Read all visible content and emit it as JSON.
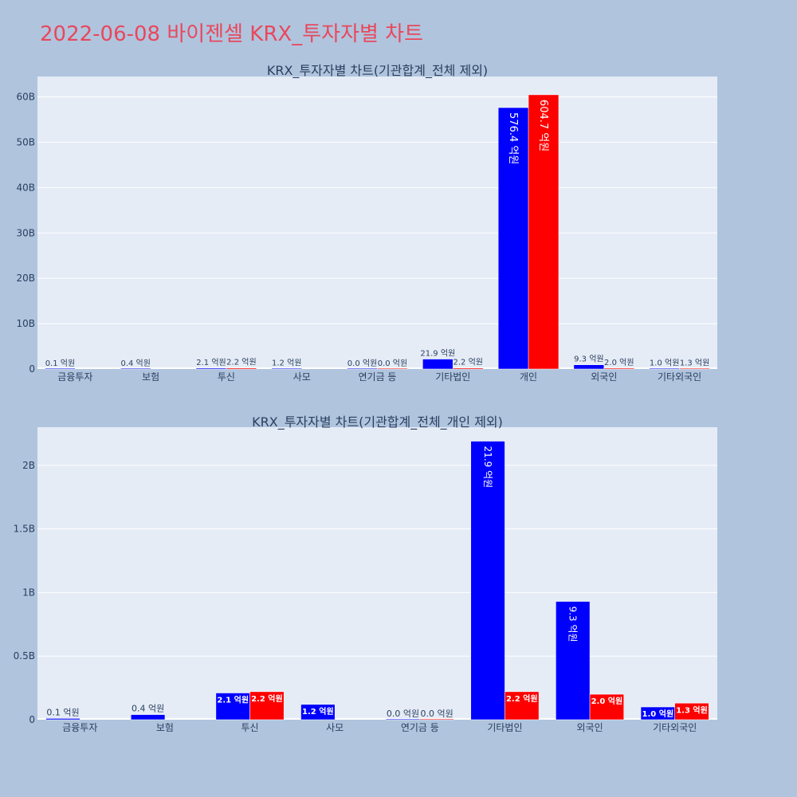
{
  "title": "2022-06-08 바이젠셀 KRX_투자자별 차트",
  "colors": {
    "background": "#b0c4de",
    "plot_bg": "#e5ecf6",
    "title": "#e8485c",
    "buy": "#0000ff",
    "sell": "#ff0000"
  },
  "chart_data": [
    {
      "type": "bar",
      "title": "KRX_투자자별 차트(기관합계_전체 제외)",
      "categories": [
        "금융투자",
        "보험",
        "투신",
        "사모",
        "연기금 등",
        "기타법인",
        "개인",
        "외국인",
        "기타외국인"
      ],
      "series": [
        {
          "color": "#0000ff",
          "values": [
            10000000,
            40000000,
            210000000,
            120000000,
            0,
            2190000000,
            57640000000,
            930000000,
            100000000
          ],
          "labels": [
            "0.1 억원",
            "0.4 억원",
            "2.1 억원",
            "1.2 억원",
            "0.0 억원",
            "21.9 억원",
            "576.4 억원",
            "9.3 억원",
            "1.0 억원"
          ]
        },
        {
          "color": "#ff0000",
          "values": [
            0,
            0,
            220000000,
            0,
            0,
            220000000,
            60470000000,
            200000000,
            130000000
          ],
          "labels": [
            "",
            "",
            "2.2 억원",
            "",
            "0.0 억원",
            "2.2 억원",
            "604.7 억원",
            "2.0 억원",
            "1.3 억원"
          ]
        }
      ],
      "yticks": [
        0,
        10000000000,
        20000000000,
        30000000000,
        40000000000,
        50000000000,
        60000000000
      ],
      "ytick_labels": [
        "0",
        "10B",
        "20B",
        "30B",
        "40B",
        "50B",
        "60B"
      ],
      "ylim": [
        0,
        64500000000
      ],
      "grid": true
    },
    {
      "type": "bar",
      "title": "KRX_투자자별 차트(기관합계_전체_개인 제외)",
      "categories": [
        "금융투자",
        "보험",
        "투신",
        "사모",
        "연기금 등",
        "기타법인",
        "외국인",
        "기타외국인"
      ],
      "series": [
        {
          "color": "#0000ff",
          "values": [
            10000000,
            40000000,
            210000000,
            120000000,
            0,
            2190000000,
            930000000,
            100000000
          ],
          "labels": [
            "0.1 억원",
            "0.4 억원",
            "2.1 억원",
            "1.2 억원",
            "0.0 억원",
            "21.9 억원",
            "9.3 억원",
            "1.0 억원"
          ]
        },
        {
          "color": "#ff0000",
          "values": [
            0,
            0,
            220000000,
            0,
            0,
            220000000,
            200000000,
            130000000
          ],
          "labels": [
            "",
            "",
            "2.2 억원",
            "",
            "0.0 억원",
            "2.2 억원",
            "2.0 억원",
            "1.3 억원"
          ]
        }
      ],
      "yticks": [
        0,
        500000000,
        1000000000,
        1500000000,
        2000000000
      ],
      "ytick_labels": [
        "0",
        "0.5B",
        "1B",
        "1.5B",
        "2B"
      ],
      "ylim": [
        0,
        2300000000
      ],
      "grid": true
    }
  ]
}
